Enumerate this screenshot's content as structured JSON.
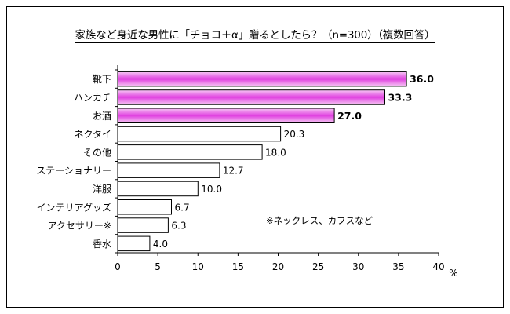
{
  "chart_data": {
    "type": "bar",
    "orientation": "horizontal",
    "title": "家族など身近な男性に「チョコ＋α」贈るとしたら？（n=300）（複数回答）",
    "categories": [
      "靴下",
      "ハンカチ",
      "お酒",
      "ネクタイ",
      "その他",
      "ステーショナリー",
      "洋服",
      "インテリアグッズ",
      "アクセサリー※",
      "香水"
    ],
    "values": [
      36.0,
      33.3,
      27.0,
      20.3,
      18.0,
      12.7,
      10.0,
      6.7,
      6.3,
      4.0
    ],
    "value_labels": [
      "36.0",
      "33.3",
      "27.0",
      "20.3",
      "18.0",
      "12.7",
      "10.0",
      "6.7",
      "6.3",
      "4.0"
    ],
    "highlighted": [
      true,
      true,
      true,
      false,
      false,
      false,
      false,
      false,
      false,
      false
    ],
    "xlim": [
      0,
      40
    ],
    "xticks": [
      0,
      5,
      10,
      15,
      20,
      25,
      30,
      35,
      40
    ],
    "xunit": "%",
    "grid": false,
    "annotation": "※ネックレス、カフスなど",
    "colors": {
      "highlight_light": "#f6c8f4",
      "highlight_dark": "#e040e0",
      "plain_fill": "#ffffff",
      "stroke": "#000000"
    }
  }
}
